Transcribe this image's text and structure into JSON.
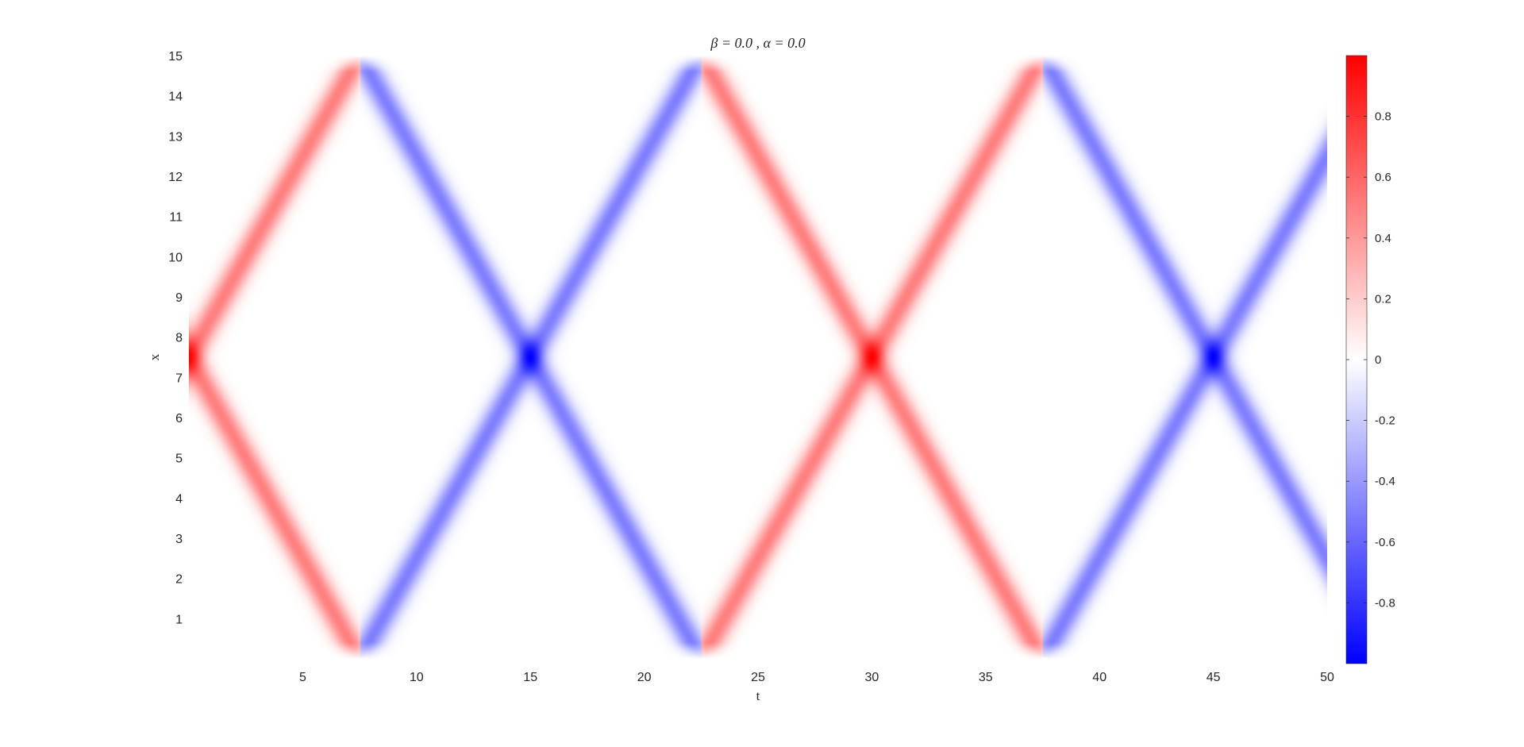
{
  "chart_data": {
    "type": "heatmap",
    "title": "β = 0.0 , α = 0.0",
    "xlabel": "t",
    "ylabel": "x",
    "xlim": [
      0,
      50
    ],
    "ylim": [
      0,
      15
    ],
    "x_ticks": [
      5,
      10,
      15,
      20,
      25,
      30,
      35,
      40,
      45,
      50
    ],
    "y_ticks": [
      1,
      2,
      3,
      4,
      5,
      6,
      7,
      8,
      9,
      10,
      11,
      12,
      13,
      14,
      15
    ],
    "x_tick_labels": [
      "5",
      "10",
      "15",
      "20",
      "25",
      "30",
      "35",
      "40",
      "45",
      "50"
    ],
    "y_tick_labels": [
      "1",
      "2",
      "3",
      "4",
      "5",
      "6",
      "7",
      "8",
      "9",
      "10",
      "11",
      "12",
      "13",
      "14",
      "15"
    ],
    "colormap": "blue-white-red",
    "colormap_colors": {
      "negative": "#0000ff",
      "zero": "#ffffff",
      "positive": "#ff0000"
    },
    "color_limits": [
      -1,
      1
    ],
    "colorbar": {
      "placement": "right",
      "ticks": [
        0.8,
        0.6,
        0.4,
        0.2,
        0,
        -0.2,
        -0.4,
        -0.6,
        -0.8
      ],
      "tick_labels": [
        "0.8",
        "0.6",
        "0.4",
        "0.2",
        "0",
        "-0.2",
        "-0.4",
        "-0.6",
        "-0.8"
      ]
    },
    "pattern": {
      "description_values": "two counter-propagating pulses reflecting at boundaries x=0 and x=15, sign inverted on each reflection",
      "initial_center_x": 7.5,
      "propagation_speed": 1.0,
      "pulse_half_width": 0.45,
      "branch_amplitude": 0.5,
      "crossing_points": [
        {
          "t": 0,
          "x": 7.5,
          "value": 1.0
        },
        {
          "t": 15,
          "x": 7.5,
          "value": -1.0
        },
        {
          "t": 30,
          "x": 7.5,
          "value": 1.0
        },
        {
          "t": 45,
          "x": 7.5,
          "value": -1.0
        }
      ],
      "boundary_reflection_times": [
        7.5,
        22.5,
        37.5
      ]
    },
    "grid": false
  }
}
